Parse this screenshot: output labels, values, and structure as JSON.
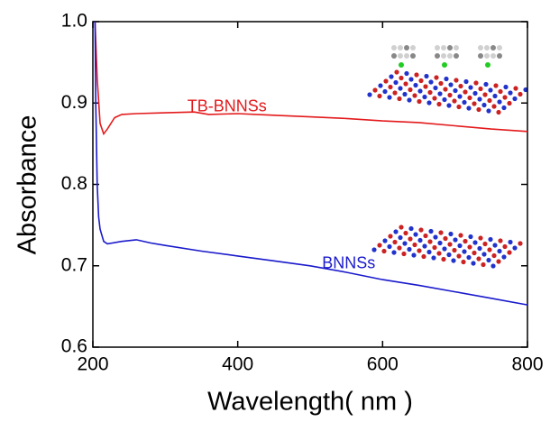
{
  "chart_data": {
    "type": "line",
    "x_label": "Wavelength( nm )",
    "y_label": "Absorbance",
    "xlim": [
      200,
      800
    ],
    "ylim": [
      0.6,
      1.0
    ],
    "xticks": [
      200,
      400,
      600,
      800
    ],
    "yticks": [
      0.6,
      0.7,
      0.8,
      0.9,
      {
        "value": 1.0,
        "label": "1.0"
      }
    ],
    "series": [
      {
        "name": "TB-BNNSs",
        "color": "#e31a1c",
        "x": [
          203,
          206,
          210,
          215,
          220,
          230,
          240,
          260,
          300,
          340,
          360,
          400,
          450,
          500,
          550,
          600,
          650,
          700,
          750,
          800
        ],
        "values": [
          1.0,
          0.93,
          0.875,
          0.862,
          0.868,
          0.882,
          0.886,
          0.887,
          0.888,
          0.889,
          0.886,
          0.887,
          0.885,
          0.883,
          0.881,
          0.878,
          0.876,
          0.872,
          0.868,
          0.865
        ]
      },
      {
        "name": "BNNSs",
        "color": "#1a1acc",
        "x": [
          203,
          204,
          206,
          208,
          210,
          215,
          220,
          240,
          260,
          280,
          300,
          350,
          400,
          450,
          500,
          550,
          600,
          650,
          700,
          750,
          800
        ],
        "values": [
          1.0,
          0.9,
          0.8,
          0.76,
          0.745,
          0.73,
          0.727,
          0.73,
          0.732,
          0.728,
          0.725,
          0.718,
          0.712,
          0.706,
          0.7,
          0.692,
          0.683,
          0.676,
          0.668,
          0.66,
          0.652
        ]
      }
    ],
    "annotations": [
      {
        "text": "TB-BNNSs",
        "x": 440,
        "y": 0.895,
        "color": "#e31a1c"
      },
      {
        "text": "BNNSs",
        "x": 590,
        "y": 0.702,
        "color": "#1a1acc"
      }
    ]
  }
}
